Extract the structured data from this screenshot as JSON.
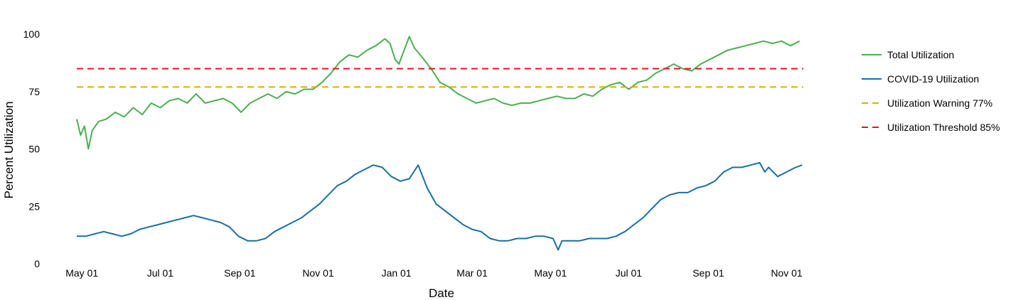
{
  "chart_data": {
    "type": "line",
    "title": "",
    "xlabel": "Date",
    "ylabel": "Percent Utilization",
    "x_range": [
      "2020-04-27",
      "2021-11-14"
    ],
    "ylim": [
      0,
      105
    ],
    "grid": false,
    "legend_position": "right",
    "x_ticks": [
      {
        "date": "2020-05-01",
        "label": "May 01"
      },
      {
        "date": "2020-07-01",
        "label": "Jul 01"
      },
      {
        "date": "2020-09-01",
        "label": "Sep 01"
      },
      {
        "date": "2020-11-01",
        "label": "Nov 01"
      },
      {
        "date": "2021-01-01",
        "label": "Jan 01"
      },
      {
        "date": "2021-03-01",
        "label": "Mar 01"
      },
      {
        "date": "2021-05-01",
        "label": "May 01"
      },
      {
        "date": "2021-07-01",
        "label": "Jul 01"
      },
      {
        "date": "2021-09-01",
        "label": "Sep 01"
      },
      {
        "date": "2021-11-01",
        "label": "Nov 01"
      }
    ],
    "y_ticks": [
      {
        "value": 0,
        "label": "0"
      },
      {
        "value": 25,
        "label": "25"
      },
      {
        "value": 50,
        "label": "50"
      },
      {
        "value": 75,
        "label": "75"
      },
      {
        "value": 100,
        "label": "100"
      }
    ],
    "series": [
      {
        "name": "Total Utilization",
        "color": "#4caf50",
        "style": "solid",
        "points": [
          [
            "2020-04-27",
            63
          ],
          [
            "2020-04-30",
            56
          ],
          [
            "2020-05-03",
            60
          ],
          [
            "2020-05-06",
            50
          ],
          [
            "2020-05-09",
            58
          ],
          [
            "2020-05-14",
            62
          ],
          [
            "2020-05-20",
            63
          ],
          [
            "2020-05-27",
            66
          ],
          [
            "2020-06-03",
            64
          ],
          [
            "2020-06-10",
            68
          ],
          [
            "2020-06-17",
            65
          ],
          [
            "2020-06-24",
            70
          ],
          [
            "2020-07-01",
            68
          ],
          [
            "2020-07-08",
            71
          ],
          [
            "2020-07-15",
            72
          ],
          [
            "2020-07-22",
            70
          ],
          [
            "2020-07-29",
            74
          ],
          [
            "2020-08-05",
            70
          ],
          [
            "2020-08-12",
            71
          ],
          [
            "2020-08-19",
            72
          ],
          [
            "2020-08-26",
            70
          ],
          [
            "2020-09-02",
            66
          ],
          [
            "2020-09-09",
            70
          ],
          [
            "2020-09-16",
            72
          ],
          [
            "2020-09-23",
            74
          ],
          [
            "2020-09-30",
            72
          ],
          [
            "2020-10-07",
            75
          ],
          [
            "2020-10-14",
            74
          ],
          [
            "2020-10-21",
            76
          ],
          [
            "2020-10-28",
            76
          ],
          [
            "2020-11-04",
            79
          ],
          [
            "2020-11-11",
            83
          ],
          [
            "2020-11-18",
            88
          ],
          [
            "2020-11-25",
            91
          ],
          [
            "2020-12-02",
            90
          ],
          [
            "2020-12-09",
            93
          ],
          [
            "2020-12-16",
            95
          ],
          [
            "2020-12-23",
            98
          ],
          [
            "2020-12-27",
            96
          ],
          [
            "2020-12-31",
            89
          ],
          [
            "2021-01-03",
            87
          ],
          [
            "2021-01-07",
            93
          ],
          [
            "2021-01-11",
            99
          ],
          [
            "2021-01-15",
            94
          ],
          [
            "2021-01-21",
            90
          ],
          [
            "2021-01-28",
            85
          ],
          [
            "2021-02-04",
            79
          ],
          [
            "2021-02-11",
            77
          ],
          [
            "2021-02-18",
            74
          ],
          [
            "2021-02-25",
            72
          ],
          [
            "2021-03-04",
            70
          ],
          [
            "2021-03-11",
            71
          ],
          [
            "2021-03-18",
            72
          ],
          [
            "2021-03-25",
            70
          ],
          [
            "2021-04-01",
            69
          ],
          [
            "2021-04-08",
            70
          ],
          [
            "2021-04-15",
            70
          ],
          [
            "2021-04-22",
            71
          ],
          [
            "2021-04-29",
            72
          ],
          [
            "2021-05-06",
            73
          ],
          [
            "2021-05-13",
            72
          ],
          [
            "2021-05-20",
            72
          ],
          [
            "2021-05-27",
            74
          ],
          [
            "2021-06-03",
            73
          ],
          [
            "2021-06-10",
            76
          ],
          [
            "2021-06-17",
            78
          ],
          [
            "2021-06-24",
            79
          ],
          [
            "2021-07-01",
            76
          ],
          [
            "2021-07-08",
            79
          ],
          [
            "2021-07-15",
            80
          ],
          [
            "2021-07-22",
            83
          ],
          [
            "2021-07-29",
            85
          ],
          [
            "2021-08-05",
            87
          ],
          [
            "2021-08-12",
            85
          ],
          [
            "2021-08-19",
            84
          ],
          [
            "2021-08-26",
            87
          ],
          [
            "2021-09-02",
            89
          ],
          [
            "2021-09-09",
            91
          ],
          [
            "2021-09-16",
            93
          ],
          [
            "2021-09-23",
            94
          ],
          [
            "2021-09-30",
            95
          ],
          [
            "2021-10-07",
            96
          ],
          [
            "2021-10-14",
            97
          ],
          [
            "2021-10-21",
            96
          ],
          [
            "2021-10-28",
            97
          ],
          [
            "2021-11-04",
            95
          ],
          [
            "2021-11-11",
            97
          ]
        ]
      },
      {
        "name": "COVID-19 Utilization",
        "color": "#1a6fa3",
        "style": "solid",
        "points": [
          [
            "2020-04-27",
            12
          ],
          [
            "2020-05-04",
            12
          ],
          [
            "2020-05-11",
            13
          ],
          [
            "2020-05-18",
            14
          ],
          [
            "2020-05-25",
            13
          ],
          [
            "2020-06-01",
            12
          ],
          [
            "2020-06-08",
            13
          ],
          [
            "2020-06-15",
            15
          ],
          [
            "2020-06-22",
            16
          ],
          [
            "2020-06-29",
            17
          ],
          [
            "2020-07-06",
            18
          ],
          [
            "2020-07-13",
            19
          ],
          [
            "2020-07-20",
            20
          ],
          [
            "2020-07-27",
            21
          ],
          [
            "2020-08-03",
            20
          ],
          [
            "2020-08-10",
            19
          ],
          [
            "2020-08-17",
            18
          ],
          [
            "2020-08-24",
            16
          ],
          [
            "2020-08-31",
            12
          ],
          [
            "2020-09-07",
            10
          ],
          [
            "2020-09-14",
            10
          ],
          [
            "2020-09-21",
            11
          ],
          [
            "2020-09-28",
            14
          ],
          [
            "2020-10-05",
            16
          ],
          [
            "2020-10-12",
            18
          ],
          [
            "2020-10-19",
            20
          ],
          [
            "2020-10-26",
            23
          ],
          [
            "2020-11-02",
            26
          ],
          [
            "2020-11-09",
            30
          ],
          [
            "2020-11-16",
            34
          ],
          [
            "2020-11-23",
            36
          ],
          [
            "2020-11-30",
            39
          ],
          [
            "2020-12-07",
            41
          ],
          [
            "2020-12-14",
            43
          ],
          [
            "2020-12-21",
            42
          ],
          [
            "2020-12-28",
            38
          ],
          [
            "2021-01-04",
            36
          ],
          [
            "2021-01-11",
            37
          ],
          [
            "2021-01-18",
            43
          ],
          [
            "2021-01-25",
            33
          ],
          [
            "2021-02-01",
            26
          ],
          [
            "2021-02-08",
            23
          ],
          [
            "2021-02-15",
            20
          ],
          [
            "2021-02-22",
            17
          ],
          [
            "2021-03-01",
            15
          ],
          [
            "2021-03-08",
            14
          ],
          [
            "2021-03-15",
            11
          ],
          [
            "2021-03-22",
            10
          ],
          [
            "2021-03-29",
            10
          ],
          [
            "2021-04-05",
            11
          ],
          [
            "2021-04-12",
            11
          ],
          [
            "2021-04-19",
            12
          ],
          [
            "2021-04-26",
            12
          ],
          [
            "2021-05-03",
            11
          ],
          [
            "2021-05-07",
            6
          ],
          [
            "2021-05-10",
            10
          ],
          [
            "2021-05-17",
            10
          ],
          [
            "2021-05-24",
            10
          ],
          [
            "2021-05-31",
            11
          ],
          [
            "2021-06-07",
            11
          ],
          [
            "2021-06-14",
            11
          ],
          [
            "2021-06-21",
            12
          ],
          [
            "2021-06-28",
            14
          ],
          [
            "2021-07-05",
            17
          ],
          [
            "2021-07-12",
            20
          ],
          [
            "2021-07-19",
            24
          ],
          [
            "2021-07-26",
            28
          ],
          [
            "2021-08-02",
            30
          ],
          [
            "2021-08-09",
            31
          ],
          [
            "2021-08-16",
            31
          ],
          [
            "2021-08-23",
            33
          ],
          [
            "2021-08-30",
            34
          ],
          [
            "2021-09-06",
            36
          ],
          [
            "2021-09-13",
            40
          ],
          [
            "2021-09-20",
            42
          ],
          [
            "2021-09-27",
            42
          ],
          [
            "2021-10-04",
            43
          ],
          [
            "2021-10-11",
            44
          ],
          [
            "2021-10-15",
            40
          ],
          [
            "2021-10-18",
            42
          ],
          [
            "2021-10-25",
            38
          ],
          [
            "2021-11-01",
            40
          ],
          [
            "2021-11-08",
            42
          ],
          [
            "2021-11-13",
            43
          ]
        ]
      },
      {
        "name": "Utilization Warning 77%",
        "color": "#f0a500",
        "style": "dashed",
        "value": 77
      },
      {
        "name": "Utilization Threshold 85%",
        "color": "#e8141a",
        "style": "dashed",
        "value": 85
      }
    ]
  }
}
